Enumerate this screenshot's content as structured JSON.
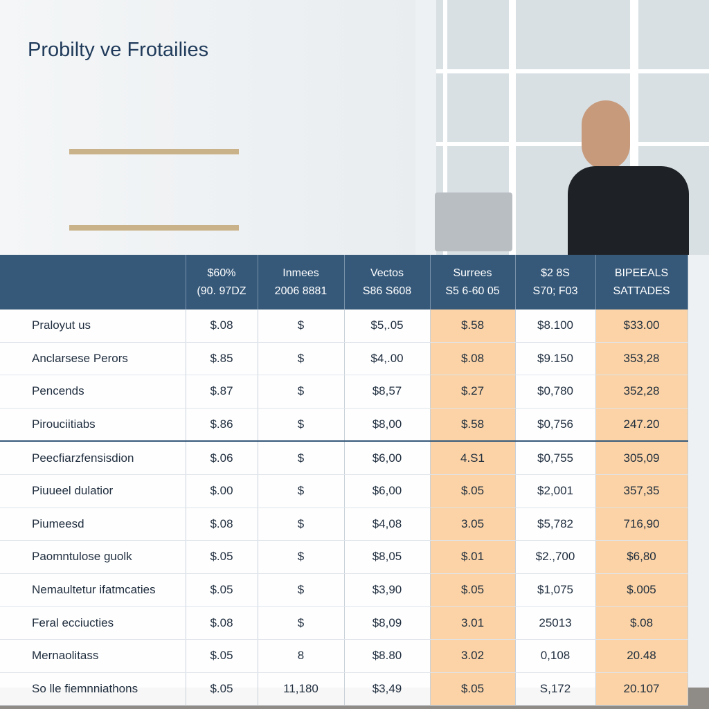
{
  "header": {
    "title": "Probilty ve Frotailies"
  },
  "table": {
    "columns": [
      [
        "$60%",
        "(90. 97DZ"
      ],
      [
        "Inmees",
        "2006 8881"
      ],
      [
        "Vectos",
        "S86 S608"
      ],
      [
        "Surrees",
        "S5 6-60 05"
      ],
      [
        "$2 8S",
        "S70; F03"
      ],
      [
        "BIPEEALS",
        "SATTADES"
      ]
    ],
    "rows": [
      [
        "Praloyut us",
        "$.08",
        "$",
        "$5,.05",
        "$.58",
        "$8.100",
        "$33.00"
      ],
      [
        "Anclarsese Perors",
        "$.85",
        "$",
        "$4,.00",
        "$.08",
        "$9.150",
        "353,28"
      ],
      [
        "Pencends",
        "$.87",
        "$",
        "$8,57",
        "$.27",
        "$0,780",
        "352,28"
      ],
      [
        "Pirouciitiabs",
        "$.86",
        "$",
        "$8,00",
        "$.58",
        "$0,756",
        "247.20"
      ],
      [
        "Peecfiarzfensisdion",
        "$.06",
        "$",
        "$6,00",
        "4.S1",
        "$0,755",
        "305,09"
      ],
      [
        "Piuueel dulatior",
        "$.00",
        "$",
        "$6,00",
        "$.05",
        "$2,001",
        "357,35"
      ],
      [
        "Piumeesd",
        "$.08",
        "$",
        "$4,08",
        "3.05",
        "$5,782",
        "716,90"
      ],
      [
        "Paomntulose guolk",
        "$.05",
        "$",
        "$8,05",
        "$.01",
        "$2.,700",
        "$6,80"
      ],
      [
        "Nemaultetur ifatmcaties",
        "$.05",
        "$",
        "$3,90",
        "$.05",
        "$1,075",
        "$.005"
      ],
      [
        "Feral ecciucties",
        "$.08",
        "$",
        "$8,09",
        "3.01",
        "25013",
        "$.08"
      ],
      [
        "Mernaolitass",
        "$.05",
        "8",
        "$8.80",
        "3.02",
        "0,108",
        "20.48"
      ],
      [
        "So lle fiemnniathons",
        "$.05",
        "11,180",
        "$3,49",
        "$.05",
        "S,172",
        "20.107"
      ]
    ]
  }
}
